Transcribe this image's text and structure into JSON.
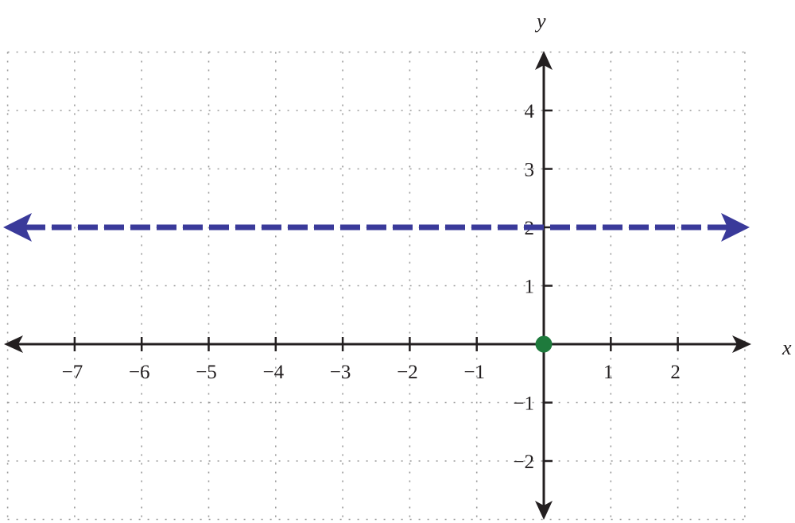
{
  "chart_data": {
    "type": "line",
    "title": "",
    "xlabel": "x",
    "ylabel": "y",
    "xlim": [
      -8,
      3
    ],
    "ylim": [
      -3,
      5
    ],
    "grid": true,
    "grid_style": "dotted",
    "x_ticks": [
      -7,
      -6,
      -5,
      -4,
      -3,
      -2,
      -1,
      1,
      2
    ],
    "x_tick_labels": [
      "−7",
      "−6",
      "−5",
      "−4",
      "−3",
      "−2",
      "−1",
      "1",
      "2"
    ],
    "y_ticks": [
      -2,
      -1,
      1,
      2,
      3,
      4
    ],
    "y_tick_labels": [
      "−2",
      "−1",
      "1",
      "2",
      "3",
      "4"
    ],
    "series": [
      {
        "kind": "horizontal-line",
        "equation_y": 2,
        "x": [
          -8,
          3
        ],
        "y": [
          2,
          2
        ],
        "style": "dashed",
        "arrows": "both",
        "color": "#3a3a9a"
      }
    ],
    "points": [
      {
        "x": 0,
        "y": 0,
        "color": "#1e7a3c"
      }
    ],
    "axis_color": "#231f20",
    "grid_color": "#999999"
  }
}
